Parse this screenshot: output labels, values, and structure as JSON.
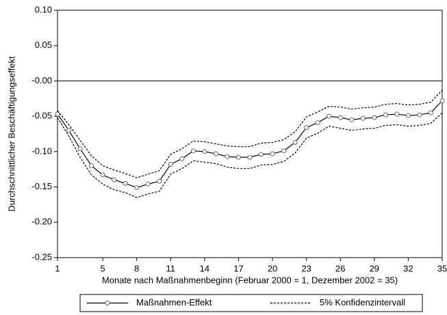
{
  "chart_data": {
    "type": "line",
    "y_label": "Durchschnittlicher Beschäftigungseffekt",
    "x_label": "Monate nach Maßnahmenbeginn (Februar 2000 = 1, Dezember 2002 = 35)",
    "x": [
      1,
      2,
      3,
      4,
      5,
      6,
      7,
      8,
      9,
      10,
      11,
      12,
      13,
      14,
      15,
      16,
      17,
      18,
      19,
      20,
      21,
      22,
      23,
      24,
      25,
      26,
      27,
      28,
      29,
      30,
      31,
      32,
      33,
      34,
      35
    ],
    "series": [
      {
        "name": "Maßnahmen-Effekt",
        "color": "#000000",
        "marker": "circle",
        "values": [
          -0.047,
          -0.07,
          -0.096,
          -0.12,
          -0.133,
          -0.14,
          -0.145,
          -0.151,
          -0.146,
          -0.142,
          -0.118,
          -0.11,
          -0.099,
          -0.1,
          -0.103,
          -0.107,
          -0.108,
          -0.108,
          -0.104,
          -0.103,
          -0.099,
          -0.087,
          -0.066,
          -0.059,
          -0.05,
          -0.052,
          -0.055,
          -0.053,
          -0.052,
          -0.048,
          -0.047,
          -0.049,
          -0.048,
          -0.045,
          -0.028
        ]
      },
      {
        "name": "5% Konfidenzintervall",
        "color": "#000000",
        "dashed": true,
        "upper": [
          -0.042,
          -0.062,
          -0.084,
          -0.106,
          -0.12,
          -0.126,
          -0.131,
          -0.137,
          -0.132,
          -0.127,
          -0.104,
          -0.096,
          -0.085,
          -0.086,
          -0.089,
          -0.092,
          -0.093,
          -0.093,
          -0.088,
          -0.087,
          -0.083,
          -0.072,
          -0.051,
          -0.044,
          -0.036,
          -0.037,
          -0.04,
          -0.038,
          -0.037,
          -0.033,
          -0.032,
          -0.034,
          -0.033,
          -0.03,
          -0.013
        ],
        "lower": [
          -0.052,
          -0.078,
          -0.108,
          -0.133,
          -0.146,
          -0.154,
          -0.158,
          -0.165,
          -0.16,
          -0.156,
          -0.132,
          -0.124,
          -0.113,
          -0.115,
          -0.117,
          -0.122,
          -0.124,
          -0.124,
          -0.119,
          -0.118,
          -0.114,
          -0.102,
          -0.081,
          -0.074,
          -0.064,
          -0.067,
          -0.07,
          -0.068,
          -0.067,
          -0.063,
          -0.062,
          -0.064,
          -0.063,
          -0.06,
          -0.045
        ]
      }
    ],
    "xlim": [
      1,
      35
    ],
    "xticks": [
      1,
      5,
      8,
      11,
      14,
      17,
      20,
      23,
      26,
      29,
      32,
      35
    ],
    "ylim": [
      -0.25,
      0.1
    ],
    "yticks": [
      {
        "value": 0.1,
        "label": "0.10"
      },
      {
        "value": 0.05,
        "label": "0.05"
      },
      {
        "value": 0,
        "label": "-0.00"
      },
      {
        "value": -0.05,
        "label": "-0.05"
      },
      {
        "value": -0.1,
        "label": "-0.10"
      },
      {
        "value": -0.15,
        "label": "-0.15"
      },
      {
        "value": -0.2,
        "label": "-0.20"
      },
      {
        "value": -0.25,
        "label": "-0.25"
      }
    ],
    "reference_line": 0,
    "legend": "bottom"
  }
}
